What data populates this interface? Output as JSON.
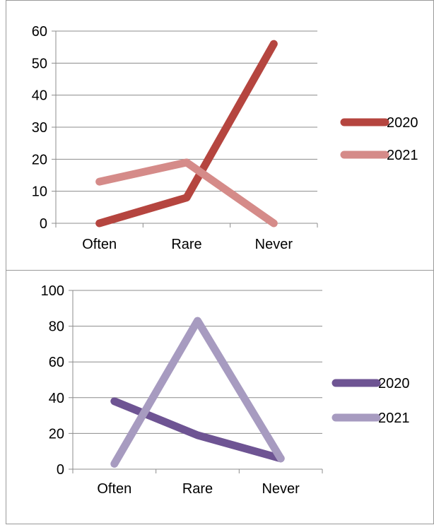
{
  "chart_data": [
    {
      "type": "line",
      "categories": [
        "Often",
        "Rare",
        "Never"
      ],
      "ylim": [
        0,
        60
      ],
      "yticks": [
        0,
        10,
        20,
        30,
        40,
        50,
        60
      ],
      "grid": true,
      "legend_position": "right",
      "series": [
        {
          "name": "2020",
          "values": [
            0,
            8,
            56
          ],
          "color": "#b5453f"
        },
        {
          "name": "2021",
          "values": [
            13,
            19,
            0
          ],
          "color": "#d58b89"
        }
      ]
    },
    {
      "type": "line",
      "categories": [
        "Often",
        "Rare",
        "Never"
      ],
      "ylim": [
        0,
        100
      ],
      "yticks": [
        0,
        20,
        40,
        60,
        80,
        100
      ],
      "grid": true,
      "legend_position": "right",
      "series": [
        {
          "name": "2020",
          "values": [
            38,
            19,
            6
          ],
          "color": "#6e5493"
        },
        {
          "name": "2021",
          "values": [
            3,
            83,
            6
          ],
          "color": "#a79bc0"
        }
      ]
    }
  ]
}
